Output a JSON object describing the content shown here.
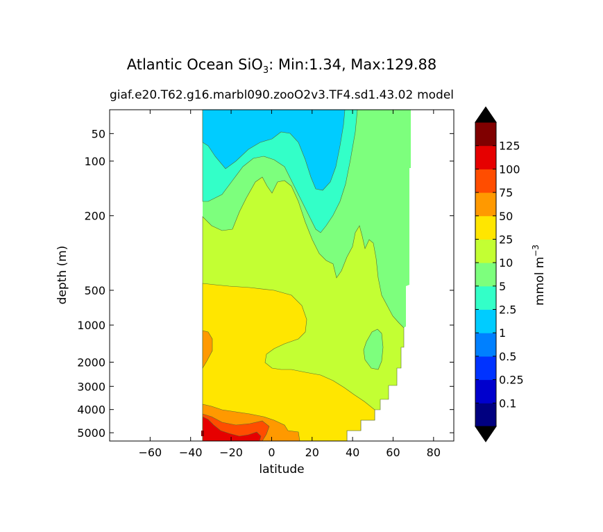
{
  "chart_data": {
    "type": "contour",
    "title_main": "Atlantic Ocean SiO",
    "title_sub": "3",
    "title_rest": ": Min:1.34, Max:129.88",
    "subtitle_left": "giaf.e20.T62.g16.marbl090.zooO2v3.TF4.sd1.43.02",
    "subtitle_right": "model",
    "xlabel": "latitude",
    "ylabel": "depth (m)",
    "xlim": [
      -80,
      90
    ],
    "xticks": [
      -60,
      -40,
      -20,
      0,
      20,
      40,
      60,
      80
    ],
    "xtick_labels": [
      "−60",
      "−40",
      "−20",
      "0",
      "20",
      "40",
      "60",
      "80"
    ],
    "depth_ticks": [
      50,
      100,
      200,
      500,
      1000,
      2000,
      3000,
      4000,
      5000
    ],
    "depth_tick_labels": [
      "50",
      "100",
      "200",
      "500",
      "1000",
      "2000",
      "3000",
      "4000",
      "5000"
    ],
    "colorbar": {
      "label": "mmol m",
      "label_sup": "−3",
      "levels": [
        "0.1",
        "0.25",
        "0.5",
        "1",
        "2.5",
        "5",
        "10",
        "25",
        "50",
        "75",
        "100",
        "125"
      ],
      "colors": [
        "#000080",
        "#0000cd",
        "#0033ff",
        "#0080ff",
        "#00ccff",
        "#33ffc8",
        "#7dff7d",
        "#c3ff33",
        "#ffe600",
        "#ff9900",
        "#ff4d00",
        "#e60000",
        "#800000"
      ],
      "extend_low": "#000000",
      "extend_high": "#000000"
    }
  }
}
